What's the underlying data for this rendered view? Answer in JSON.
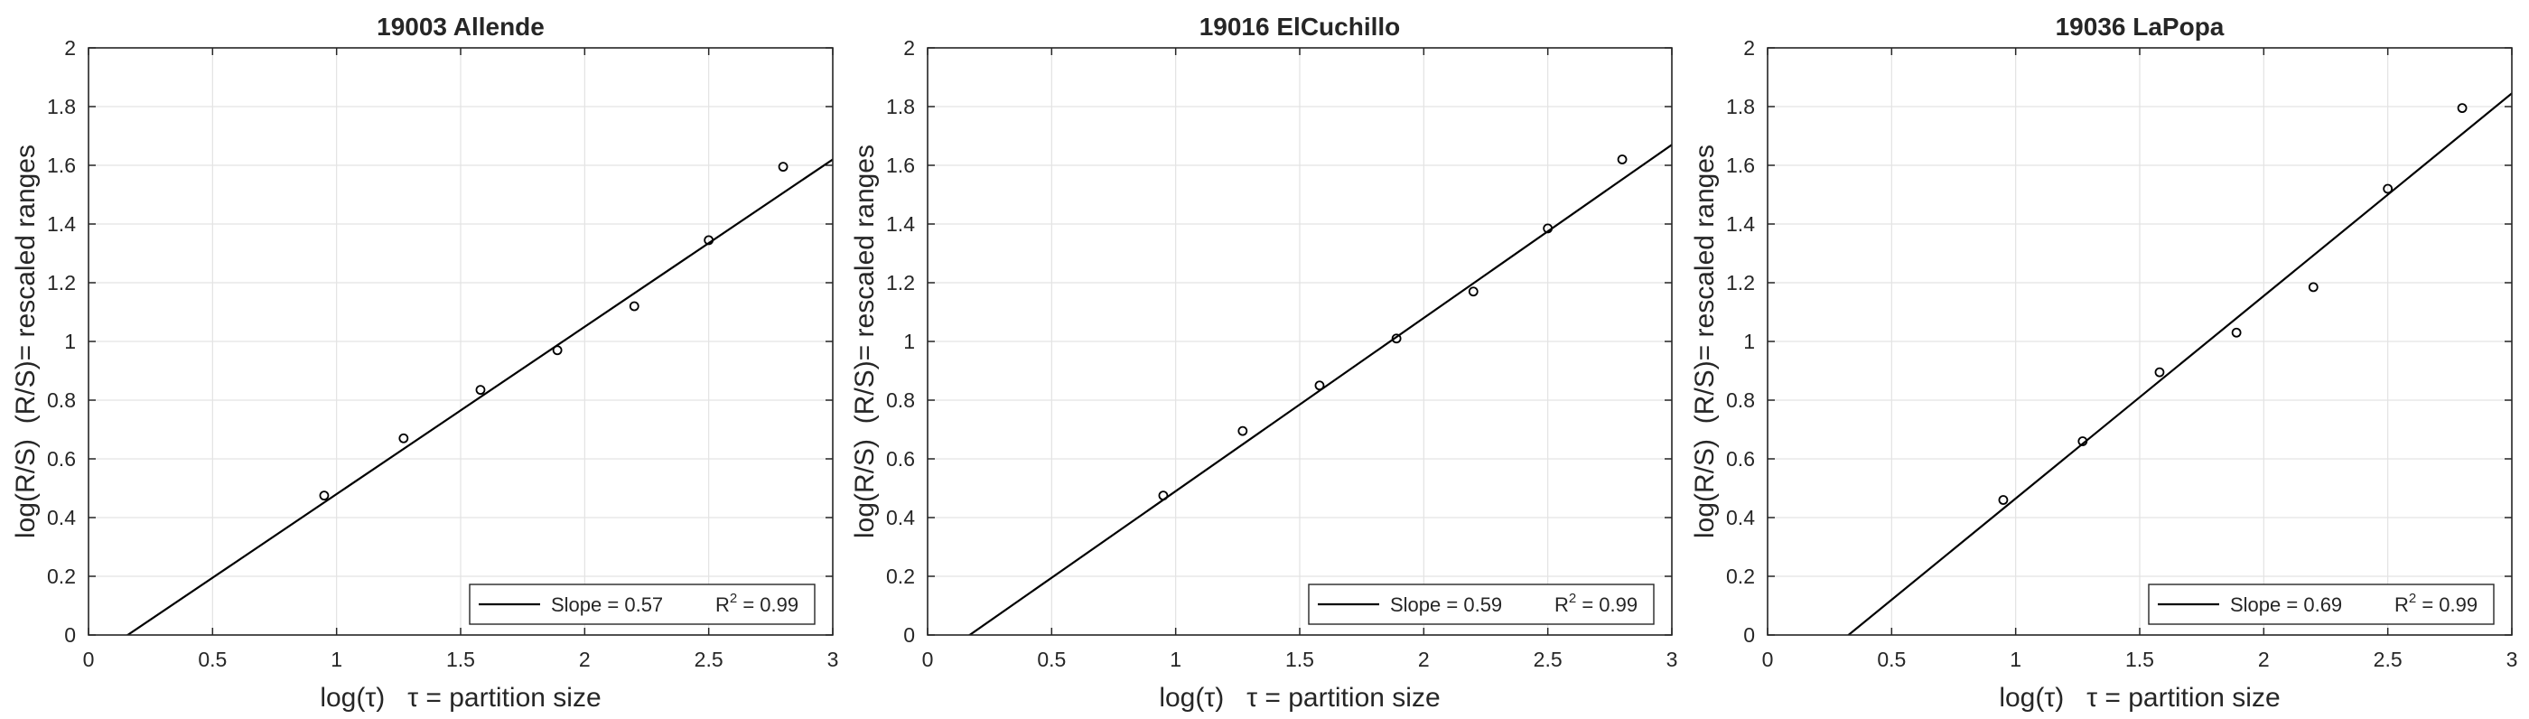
{
  "chart_data": [
    {
      "type": "scatter",
      "title": "19003 Allende",
      "xlabel": "log(τ)   τ = partition size",
      "ylabel": "log(R/S)  (R/S)= rescaled ranges",
      "xlim": [
        0,
        3
      ],
      "ylim": [
        0,
        2
      ],
      "xticks": [
        "0",
        "0.5",
        "1",
        "1.5",
        "2",
        "2.5",
        "3"
      ],
      "yticks": [
        "0",
        "0.2",
        "0.4",
        "0.6",
        "0.8",
        "1",
        "1.2",
        "1.4",
        "1.6",
        "1.8",
        "2"
      ],
      "grid": true,
      "legend_position": "bottom-right",
      "series": [
        {
          "kind": "points",
          "x": [
            0.95,
            1.27,
            1.58,
            1.89,
            2.2,
            2.5,
            2.8
          ],
          "y": [
            0.475,
            0.67,
            0.835,
            0.97,
            1.12,
            1.345,
            1.595
          ]
        },
        {
          "kind": "fit",
          "slope": 0.57,
          "intercept": -0.09,
          "legend": "Slope = 0.57",
          "r2_label": "R",
          "r2_sup": "2",
          "r2_value": " = 0.99"
        }
      ]
    },
    {
      "type": "scatter",
      "title": "19016 ElCuchillo",
      "xlabel": "log(τ)   τ = partition size",
      "ylabel": "log(R/S)  (R/S)= rescaled ranges",
      "xlim": [
        0,
        3
      ],
      "ylim": [
        0,
        2
      ],
      "xticks": [
        "0",
        "0.5",
        "1",
        "1.5",
        "2",
        "2.5",
        "3"
      ],
      "yticks": [
        "0",
        "0.2",
        "0.4",
        "0.6",
        "0.8",
        "1",
        "1.2",
        "1.4",
        "1.6",
        "1.8",
        "2"
      ],
      "grid": true,
      "legend_position": "bottom-right",
      "series": [
        {
          "kind": "points",
          "x": [
            0.95,
            1.27,
            1.58,
            1.89,
            2.2,
            2.5,
            2.8
          ],
          "y": [
            0.475,
            0.695,
            0.85,
            1.01,
            1.17,
            1.385,
            1.62
          ]
        },
        {
          "kind": "fit",
          "slope": 0.59,
          "intercept": -0.1,
          "legend": "Slope = 0.59",
          "r2_label": "R",
          "r2_sup": "2",
          "r2_value": " = 0.99"
        }
      ]
    },
    {
      "type": "scatter",
      "title": "19036 LaPopa",
      "xlabel": "log(τ)   τ = partition size",
      "ylabel": "log(R/S)  (R/S)= rescaled ranges",
      "xlim": [
        0,
        3
      ],
      "ylim": [
        0,
        2
      ],
      "xticks": [
        "0",
        "0.5",
        "1",
        "1.5",
        "2",
        "2.5",
        "3"
      ],
      "yticks": [
        "0",
        "0.2",
        "0.4",
        "0.6",
        "0.8",
        "1",
        "1.2",
        "1.4",
        "1.6",
        "1.8",
        "2"
      ],
      "grid": true,
      "legend_position": "bottom-right",
      "series": [
        {
          "kind": "points",
          "x": [
            0.95,
            1.27,
            1.58,
            1.89,
            2.2,
            2.5,
            2.8
          ],
          "y": [
            0.46,
            0.66,
            0.895,
            1.03,
            1.185,
            1.52,
            1.795
          ]
        },
        {
          "kind": "fit",
          "slope": 0.69,
          "intercept": -0.225,
          "legend": "Slope = 0.69",
          "r2_label": "R",
          "r2_sup": "2",
          "r2_value": " = 0.99"
        }
      ]
    }
  ]
}
